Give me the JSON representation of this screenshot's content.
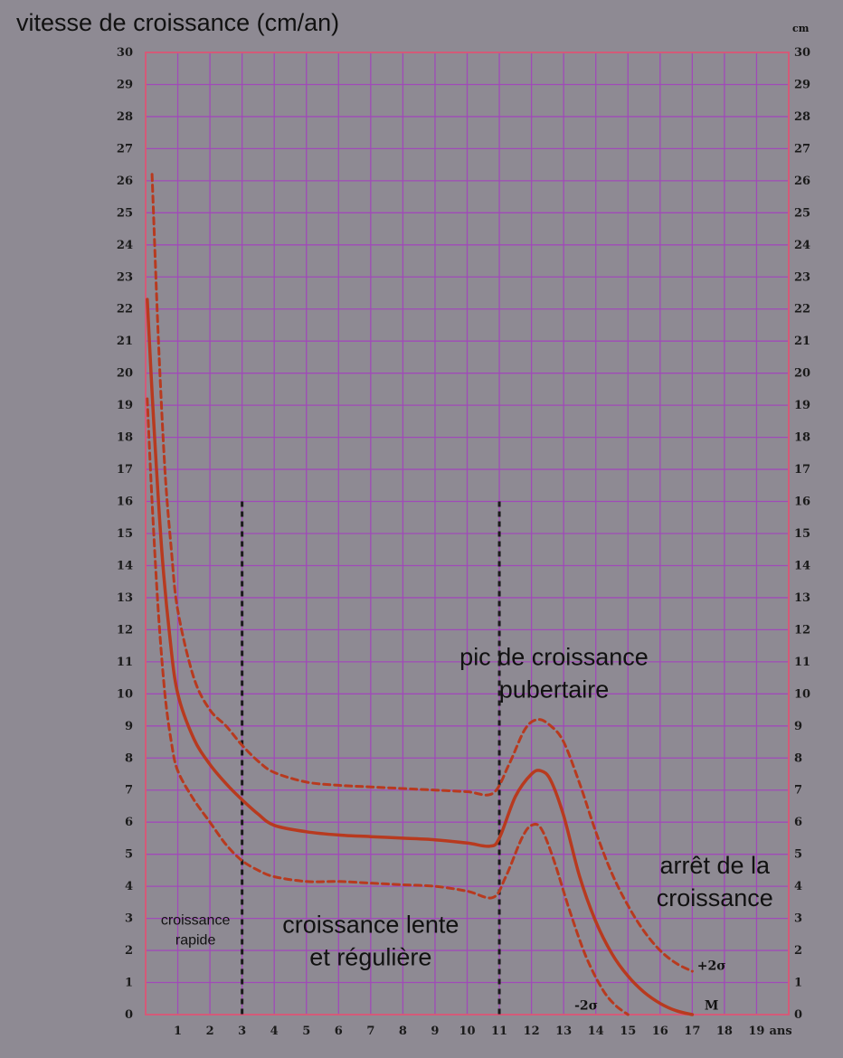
{
  "chart_data": {
    "type": "line",
    "title": "vitesse de croissance (cm/an)",
    "right_unit": "cm",
    "x_unit_label": "ans",
    "xlim": [
      0,
      20
    ],
    "ylim": [
      0,
      30
    ],
    "x_ticks": [
      1,
      2,
      3,
      4,
      5,
      6,
      7,
      8,
      9,
      10,
      11,
      12,
      13,
      14,
      15,
      16,
      17,
      18,
      19
    ],
    "y_ticks": [
      0,
      1,
      2,
      3,
      4,
      5,
      6,
      7,
      8,
      9,
      10,
      11,
      12,
      13,
      14,
      15,
      16,
      17,
      18,
      19,
      20,
      21,
      22,
      23,
      24,
      25,
      26,
      27,
      28,
      29,
      30
    ],
    "grid": true,
    "colors": {
      "grid": "#a04ab8",
      "border": "#d45a78",
      "curve": "#b83a1f",
      "divider": "#1a1a1a"
    },
    "series": [
      {
        "name": "M",
        "style": "solid",
        "points": [
          [
            0.05,
            22.3
          ],
          [
            0.25,
            18.5
          ],
          [
            0.5,
            14.5
          ],
          [
            0.75,
            11.8
          ],
          [
            1,
            10
          ],
          [
            1.5,
            8.6
          ],
          [
            2,
            7.8
          ],
          [
            2.5,
            7.2
          ],
          [
            3,
            6.7
          ],
          [
            3.5,
            6.25
          ],
          [
            4,
            5.9
          ],
          [
            5,
            5.7
          ],
          [
            6,
            5.6
          ],
          [
            7,
            5.55
          ],
          [
            8,
            5.5
          ],
          [
            9,
            5.45
          ],
          [
            10,
            5.35
          ],
          [
            10.7,
            5.25
          ],
          [
            11,
            5.5
          ],
          [
            11.5,
            6.8
          ],
          [
            12,
            7.5
          ],
          [
            12.3,
            7.6
          ],
          [
            12.6,
            7.3
          ],
          [
            13,
            6.2
          ],
          [
            13.5,
            4.3
          ],
          [
            14,
            2.9
          ],
          [
            14.5,
            1.9
          ],
          [
            15,
            1.2
          ],
          [
            15.5,
            0.7
          ],
          [
            16,
            0.35
          ],
          [
            16.5,
            0.12
          ],
          [
            17,
            0
          ]
        ]
      },
      {
        "name": "+2σ",
        "style": "dashed",
        "points": [
          [
            0.2,
            26.2
          ],
          [
            0.4,
            21
          ],
          [
            0.6,
            17
          ],
          [
            0.8,
            14.5
          ],
          [
            1,
            12.6
          ],
          [
            1.5,
            10.5
          ],
          [
            2,
            9.5
          ],
          [
            2.5,
            9
          ],
          [
            3,
            8.4
          ],
          [
            3.5,
            7.9
          ],
          [
            4,
            7.55
          ],
          [
            5,
            7.25
          ],
          [
            6,
            7.15
          ],
          [
            7,
            7.1
          ],
          [
            8,
            7.05
          ],
          [
            9,
            7.0
          ],
          [
            10,
            6.95
          ],
          [
            10.8,
            6.9
          ],
          [
            11.3,
            7.8
          ],
          [
            11.8,
            8.9
          ],
          [
            12.2,
            9.2
          ],
          [
            12.6,
            9.0
          ],
          [
            13,
            8.5
          ],
          [
            13.5,
            7.2
          ],
          [
            14,
            5.7
          ],
          [
            14.5,
            4.4
          ],
          [
            15,
            3.4
          ],
          [
            15.5,
            2.6
          ],
          [
            16,
            2.0
          ],
          [
            16.5,
            1.6
          ],
          [
            17,
            1.35
          ]
        ]
      },
      {
        "name": "-2σ",
        "style": "dashed",
        "points": [
          [
            0.05,
            19.2
          ],
          [
            0.2,
            16
          ],
          [
            0.4,
            12.5
          ],
          [
            0.6,
            10
          ],
          [
            0.8,
            8.5
          ],
          [
            1,
            7.6
          ],
          [
            1.5,
            6.7
          ],
          [
            2,
            6.0
          ],
          [
            2.5,
            5.3
          ],
          [
            3,
            4.8
          ],
          [
            3.5,
            4.5
          ],
          [
            4,
            4.3
          ],
          [
            5,
            4.15
          ],
          [
            6,
            4.15
          ],
          [
            7,
            4.1
          ],
          [
            8,
            4.05
          ],
          [
            9,
            4.0
          ],
          [
            10,
            3.85
          ],
          [
            10.8,
            3.65
          ],
          [
            11.2,
            4.3
          ],
          [
            11.7,
            5.5
          ],
          [
            12,
            5.9
          ],
          [
            12.3,
            5.8
          ],
          [
            12.7,
            4.8
          ],
          [
            13.2,
            3.2
          ],
          [
            13.7,
            1.8
          ],
          [
            14.2,
            0.8
          ],
          [
            14.6,
            0.3
          ],
          [
            15,
            0
          ]
        ]
      }
    ],
    "dividers": [
      {
        "x": 3,
        "y_top": 16
      },
      {
        "x": 11,
        "y_top": 16
      }
    ],
    "annotations": [
      {
        "lines": [
          "croissance",
          "rapide"
        ],
        "x": 1.55,
        "y": 2.8,
        "size": "small"
      },
      {
        "lines": [
          "croissance lente",
          "et régulière"
        ],
        "x": 7.0,
        "y": 2.55,
        "size": "big"
      },
      {
        "lines": [
          "pic de croissance",
          "pubertaire"
        ],
        "x": 12.7,
        "y": 10.9,
        "size": "big"
      },
      {
        "lines": [
          "arrêt de la",
          "croissance"
        ],
        "x": 17.7,
        "y": 4.4,
        "size": "big"
      }
    ],
    "series_labels": [
      {
        "text": "+2σ",
        "x": 17.6,
        "y": 1.4
      },
      {
        "text": "-2σ",
        "x": 13.7,
        "y": 0.15
      },
      {
        "text": "M",
        "x": 17.6,
        "y": 0.15
      }
    ]
  }
}
